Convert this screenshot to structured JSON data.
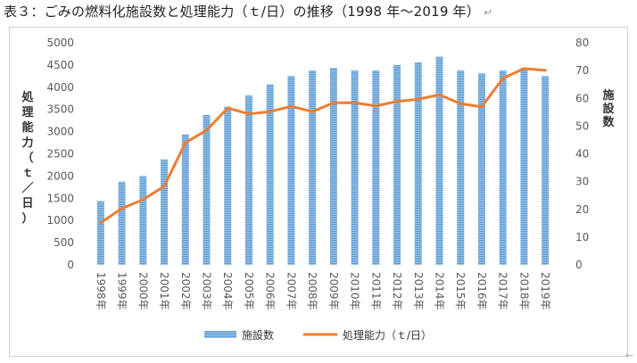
{
  "document": {
    "title": "表３：ごみの燃料化施設数と処理能力（ｔ/日）の推移（1998 年～2019 年）",
    "paragraph_mark": "↵",
    "end_mark": "←"
  },
  "chart_data": {
    "type": "bar",
    "categories": [
      "1998年",
      "1999年",
      "2000年",
      "2001年",
      "2002年",
      "2003年",
      "2004年",
      "2005年",
      "2006年",
      "2007年",
      "2008年",
      "2009年",
      "2010年",
      "2011年",
      "2012年",
      "2013年",
      "2014年",
      "2015年",
      "2016年",
      "2017年",
      "2018年",
      "2019年"
    ],
    "series": [
      {
        "name": "施設数",
        "kind": "bar",
        "axis": "right",
        "color": "#5b9bd5",
        "values": [
          23,
          30,
          32,
          38,
          47,
          54,
          57,
          61,
          65,
          68,
          70,
          71,
          70,
          70,
          72,
          73,
          75,
          70,
          69,
          70,
          71,
          68
        ]
      },
      {
        "name": "処理能力（ｔ/日）",
        "kind": "line",
        "axis": "left",
        "color": "#ed7d31",
        "values": [
          950,
          1270,
          1470,
          1770,
          2750,
          3030,
          3530,
          3400,
          3450,
          3570,
          3450,
          3650,
          3650,
          3580,
          3680,
          3730,
          3830,
          3630,
          3560,
          4200,
          4420,
          4380
        ]
      }
    ],
    "y_left": {
      "label": "処理能力（ｔ／日）",
      "min": 0,
      "max": 5000,
      "step": 500,
      "ticks": [
        "0",
        "500",
        "1000",
        "1500",
        "2000",
        "2500",
        "3000",
        "3500",
        "4000",
        "4500",
        "5000"
      ]
    },
    "y_right": {
      "label": "施設数",
      "min": 0,
      "max": 80,
      "step": 10,
      "ticks": [
        "0",
        "10",
        "20",
        "30",
        "40",
        "50",
        "60",
        "70",
        "80"
      ]
    },
    "legend": {
      "position": "bottom",
      "items": [
        "施設数",
        "処理能力（ｔ/日）"
      ]
    },
    "grid": false
  }
}
